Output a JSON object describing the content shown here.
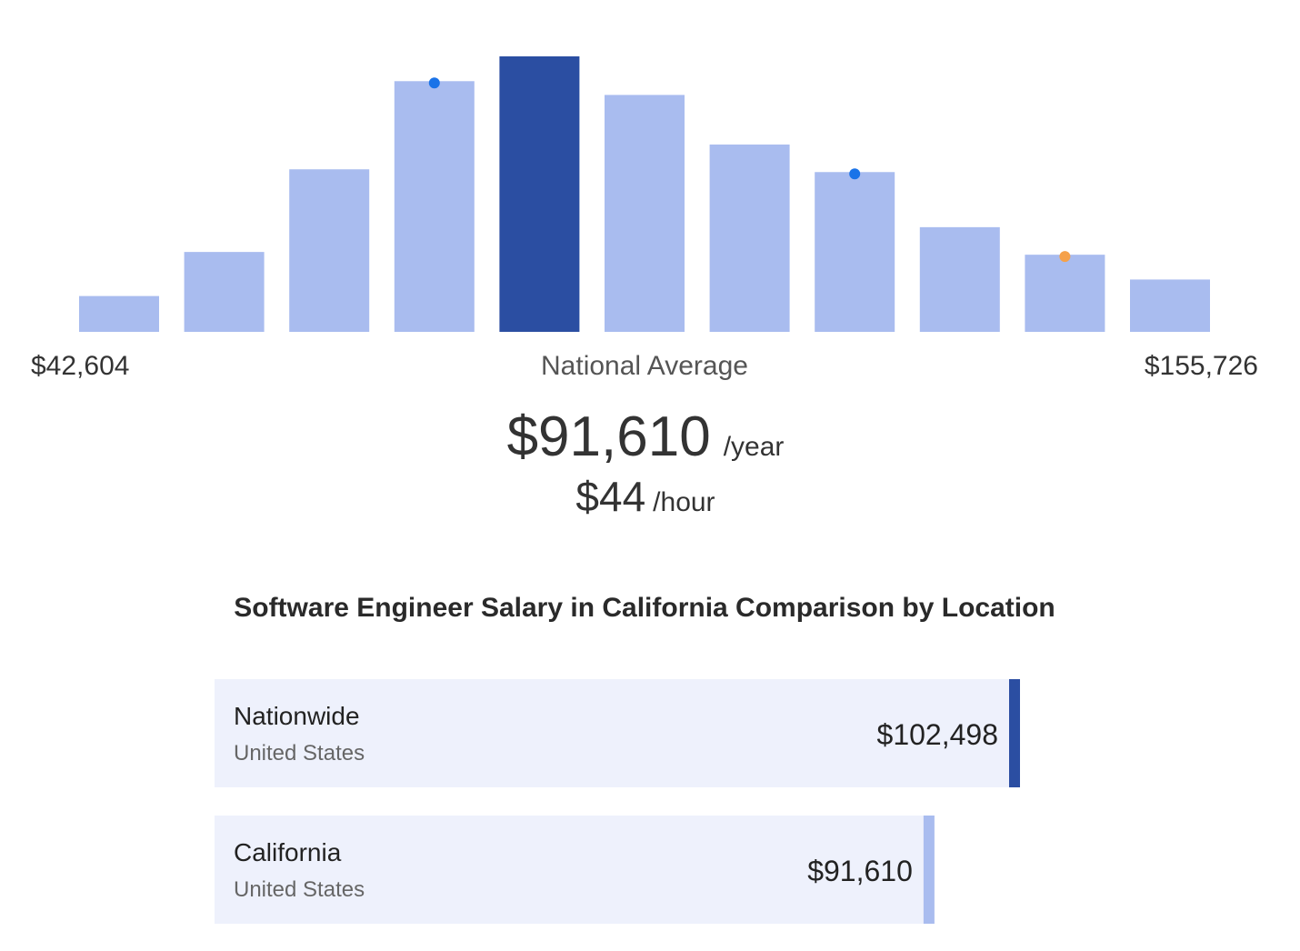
{
  "histogram": {
    "type": "bar",
    "values": [
      13,
      29,
      59,
      91,
      100,
      86,
      68,
      58,
      38,
      28,
      19
    ],
    "ylim": [
      0,
      100
    ],
    "color": "#a9bcef",
    "highlight_color": "#2b4ea2",
    "highlight_index": 4,
    "markers": [
      null,
      null,
      null,
      "#1a73e8",
      null,
      null,
      null,
      "#1a73e8",
      null,
      "#f5a14a",
      null
    ],
    "range_min": "$42,604",
    "range_max": "$155,726",
    "caption": "National Average"
  },
  "average": {
    "yearly": "$91,610",
    "yearly_unit": "/year",
    "hourly": "$44",
    "hourly_unit": "/hour"
  },
  "comparison": {
    "title": "Software Engineer Salary in California Comparison by Location",
    "xlim": [
      0,
      102498
    ],
    "rows": [
      {
        "name": "Nationwide",
        "region": "United States",
        "value": 102498,
        "value_label": "$102,498",
        "color": "#2b4ea2"
      },
      {
        "name": "California",
        "region": "United States",
        "value": 91610,
        "value_label": "$91,610",
        "color": "#a9bcef"
      }
    ]
  }
}
